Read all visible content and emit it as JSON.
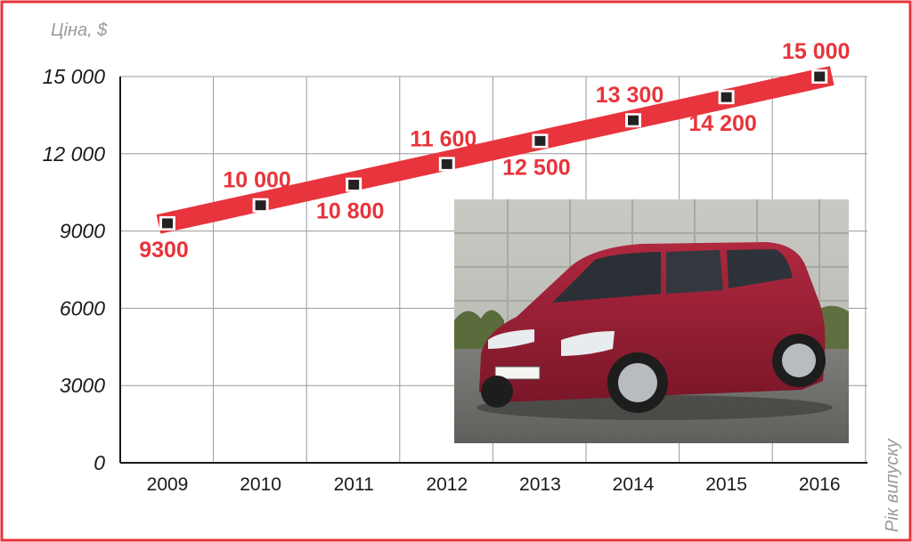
{
  "chart_data": {
    "type": "line",
    "title": "",
    "ylabel": "Ціна, $",
    "xlabel": "Рік випуску",
    "x": [
      "2009",
      "2010",
      "2011",
      "2012",
      "2013",
      "2014",
      "2015",
      "2016"
    ],
    "values": [
      9300,
      10000,
      10800,
      11600,
      12500,
      13300,
      14200,
      15000
    ],
    "value_labels": [
      "9300",
      "10 000",
      "10 800",
      "11 600",
      "12 500",
      "13 300",
      "14 200",
      "15 000"
    ],
    "label_side": [
      "below",
      "above",
      "below",
      "above",
      "below",
      "above",
      "below",
      "above"
    ],
    "yticks": [
      0,
      3000,
      6000,
      9000,
      12000,
      15000
    ],
    "ytick_labels": [
      "0",
      "3000",
      "6000",
      "9000",
      "12 000",
      "15 000"
    ],
    "ylim": [
      0,
      15000
    ],
    "grid": true,
    "series_color": "#e8343c",
    "frame_color": "#e8343c"
  },
  "inset_photo": {
    "subject": "red-minivan-photo"
  }
}
